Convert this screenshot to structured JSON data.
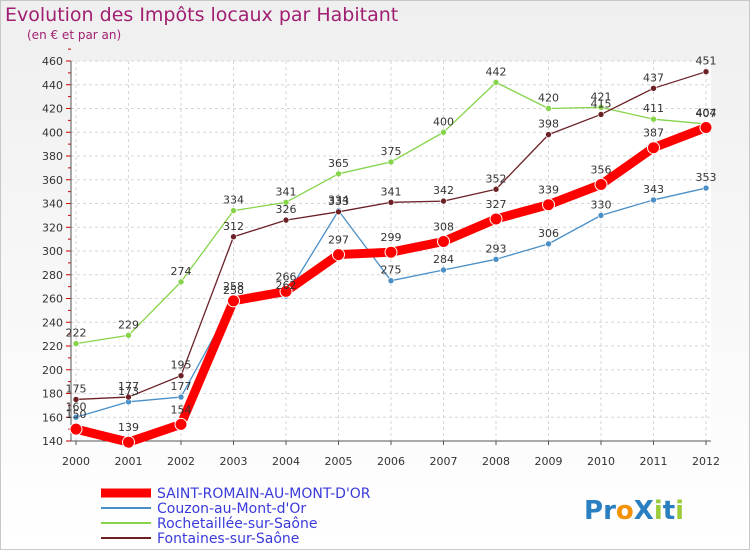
{
  "chart_data": {
    "type": "line",
    "title": "Evolution des Impôts locaux par Habitant",
    "subtitle": "(en € et par an)",
    "xlabel": "",
    "ylabel": "",
    "x": [
      "2000",
      "2001",
      "2002",
      "2003",
      "2004",
      "2005",
      "2006",
      "2007",
      "2008",
      "2009",
      "2010",
      "2011",
      "2012"
    ],
    "ylim": [
      140,
      460
    ],
    "yticks": [
      140,
      160,
      180,
      200,
      220,
      240,
      260,
      280,
      300,
      320,
      340,
      360,
      380,
      400,
      420,
      440,
      460
    ],
    "grid": true,
    "legend_position": "bottom-left",
    "series": [
      {
        "name": "SAINT-ROMAIN-AU-MONT-D'OR",
        "color": "#ff0000",
        "emphasis": true,
        "values": [
          150,
          139,
          154,
          258,
          266,
          297,
          299,
          308,
          327,
          339,
          356,
          387,
          404
        ]
      },
      {
        "name": "Couzon-au-Mont-d'Or",
        "color": "#4b8fc7",
        "emphasis": false,
        "values": [
          160,
          173,
          177,
          258,
          262,
          334,
          275,
          284,
          293,
          306,
          330,
          343,
          353
        ]
      },
      {
        "name": "Rochetaillée-sur-Saône",
        "color": "#86d44a",
        "emphasis": false,
        "values": [
          222,
          229,
          274,
          334,
          341,
          365,
          375,
          400,
          442,
          420,
          421,
          411,
          407
        ]
      },
      {
        "name": "Fontaines-sur-Saône",
        "color": "#6b2126",
        "emphasis": false,
        "values": [
          175,
          177,
          195,
          312,
          326,
          333,
          341,
          342,
          352,
          398,
          415,
          437,
          451
        ]
      }
    ]
  },
  "logo": {
    "text": "ProXiti",
    "letter_colors": [
      "#2a7fc1",
      "#2a7fc1",
      "#f39200",
      "#2a7fc1",
      "#9ccb3b",
      "#2a7fc1",
      "#9ccb3b"
    ]
  }
}
